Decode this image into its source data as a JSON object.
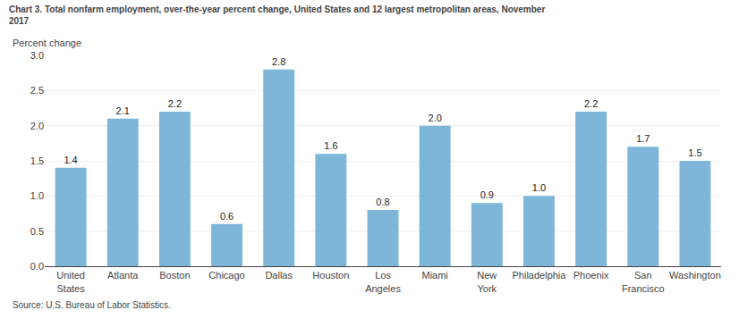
{
  "chart_data": {
    "type": "bar",
    "title": "Chart 3. Total nonfarm employment, over-the-year percent change, United States and 12 largest metropolitan areas, November\n2017",
    "ylabel": "Percent change",
    "source": "Source: U.S. Bureau of Labor Statistics.",
    "categories": [
      "United\nStates",
      "Atlanta",
      "Boston",
      "Chicago",
      "Dallas",
      "Houston",
      "Los\nAngeles",
      "Miami",
      "New\nYork",
      "Philadelphia",
      "Phoenix",
      "San\nFrancisco",
      "Washington"
    ],
    "values": [
      1.4,
      2.1,
      2.2,
      0.6,
      2.8,
      1.6,
      0.8,
      2.0,
      0.9,
      1.0,
      2.2,
      1.7,
      1.5
    ],
    "value_labels": [
      "1.4",
      "2.1",
      "2.2",
      "0.6",
      "2.8",
      "1.6",
      "0.8",
      "2.0",
      "0.9",
      "1.0",
      "2.2",
      "1.7",
      "1.5"
    ],
    "data_labels": true,
    "color": "#7db6d9",
    "ylim": [
      0,
      3
    ],
    "yticks": [
      {
        "value": 0,
        "label": "0.0"
      },
      0.5,
      {
        "value": 1,
        "label": "1.0"
      },
      1.5,
      {
        "value": 2,
        "label": "2.0"
      },
      2.5,
      {
        "value": 3,
        "label": "3.0"
      }
    ],
    "grid": true
  }
}
